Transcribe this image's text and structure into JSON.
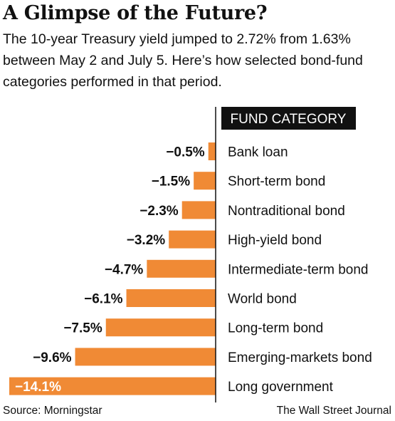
{
  "header": {
    "title": "A Glimpse of the Future?",
    "subtitle": "The 10-year Treasury yield jumped to 2.72% from 1.63% between May 2 and July 5. Here’s how selected bond-fund categories performed in that period."
  },
  "footer": {
    "source": "Source: Morningstar",
    "credit": "The Wall Street Journal"
  },
  "colors": {
    "bar": "#f08a35",
    "header_bg": "#111111",
    "header_text": "#ffffff",
    "axis": "#111111"
  },
  "chart_data": {
    "type": "bar",
    "orientation": "horizontal",
    "column_header": "FUND CATEGORY",
    "categories": [
      "Bank loan",
      "Short-term bond",
      "Nontraditional bond",
      "High-yield bond",
      "Intermediate-term bond",
      "World bond",
      "Long-term bond",
      "Emerging-markets bond",
      "Long government"
    ],
    "values": [
      -0.5,
      -1.5,
      -2.3,
      -3.2,
      -4.7,
      -6.1,
      -7.5,
      -9.6,
      -14.1
    ],
    "value_labels": [
      "−0.5%",
      "−1.5%",
      "−2.3%",
      "−3.2%",
      "−4.7%",
      "−6.1%",
      "−7.5%",
      "−9.6%",
      "−14.1%"
    ],
    "xlim": [
      -14.1,
      0
    ],
    "grid": false,
    "legend": "none"
  }
}
